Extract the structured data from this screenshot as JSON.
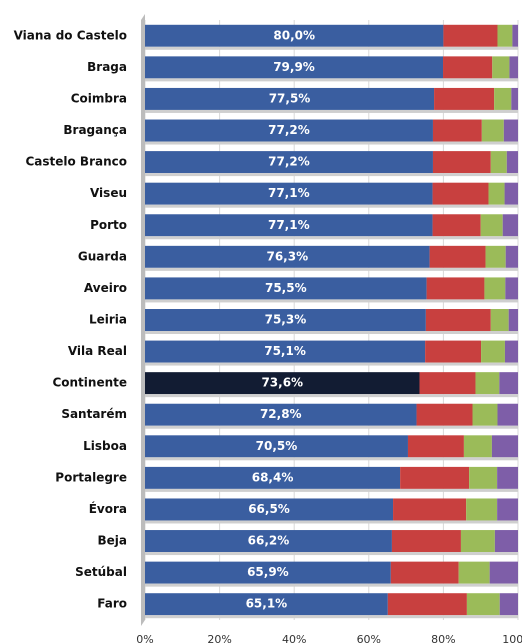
{
  "chart_data": {
    "type": "stacked-barh",
    "categories": [
      "Viana do Castelo",
      "Braga",
      "Coimbra",
      "Bragança",
      "Castelo Branco",
      "Viseu",
      "Porto",
      "Guarda",
      "Aveiro",
      "Leiria",
      "Vila Real",
      "Continente",
      "Santarém",
      "Lisboa",
      "Portalegre",
      "Évora",
      "Beja",
      "Setúbal",
      "Faro"
    ],
    "series": [
      {
        "color": "#3a5ea0",
        "values": [
          80.0,
          79.9,
          77.5,
          77.2,
          77.2,
          77.1,
          77.1,
          76.3,
          75.5,
          75.3,
          75.1,
          73.6,
          72.8,
          70.5,
          68.4,
          66.5,
          66.2,
          65.9,
          65.1
        ],
        "value_labels": [
          "80,0%",
          "79,9%",
          "77,5%",
          "77,2%",
          "77,2%",
          "77,1%",
          "77,1%",
          "76,3%",
          "75,5%",
          "75,3%",
          "75,1%",
          "73,6%",
          "72,8%",
          "70,5%",
          "68,4%",
          "66,5%",
          "66,2%",
          "65,9%",
          "65,1%"
        ]
      },
      {
        "color": "#c8403f",
        "values": [
          14.5,
          13.2,
          16.1,
          13.1,
          15.5,
          15.0,
          12.9,
          15.0,
          15.5,
          17.4,
          15.0,
          15.0,
          15.0,
          15.0,
          18.5,
          19.6,
          18.5,
          18.2,
          21.2
        ]
      },
      {
        "color": "#9bbb59",
        "values": [
          4.0,
          4.6,
          4.6,
          5.9,
          4.3,
          4.3,
          5.9,
          5.4,
          5.6,
          4.8,
          6.4,
          6.4,
          6.7,
          7.5,
          7.5,
          8.3,
          9.1,
          8.3,
          8.8
        ]
      },
      {
        "color": "#7e5ea8",
        "values": [
          1.5,
          2.3,
          1.8,
          3.8,
          3.0,
          3.6,
          4.1,
          3.3,
          3.4,
          2.5,
          3.5,
          5.0,
          5.5,
          7.0,
          5.6,
          5.6,
          6.2,
          7.6,
          4.9
        ]
      }
    ],
    "highlight_index": 11,
    "highlight_color": "#121c33",
    "xlim": [
      0,
      100
    ],
    "xticks": [
      {
        "value": 0,
        "label": "0%"
      },
      {
        "value": 20,
        "label": "20%"
      },
      {
        "value": 40,
        "label": "40%"
      },
      {
        "value": 60,
        "label": "60%"
      },
      {
        "value": 80,
        "label": "80%"
      },
      {
        "value": 100,
        "label": "100%"
      }
    ],
    "grid": true
  }
}
